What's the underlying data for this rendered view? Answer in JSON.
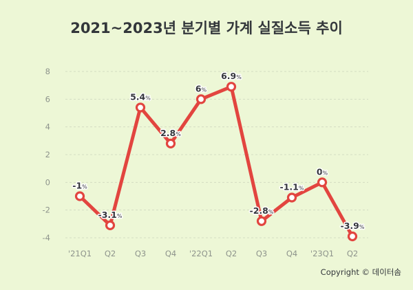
{
  "chart_data": {
    "type": "line",
    "title": "2021~2023년 분기별 가계 실질소득 추이",
    "categories": [
      "'21Q1",
      "Q2",
      "Q3",
      "Q4",
      "'22Q1",
      "Q2",
      "Q3",
      "Q4",
      "'23Q1",
      "Q2"
    ],
    "values": [
      -1,
      -3.1,
      5.4,
      2.8,
      6,
      6.9,
      -2.8,
      -1.1,
      0,
      -3.9
    ],
    "value_suffix": "%",
    "ylim": [
      -4,
      8
    ],
    "yticks": [
      "-4",
      "-2",
      "0",
      "2",
      "4",
      "6",
      "8"
    ],
    "grid": true,
    "colors": {
      "line": "#e2453f",
      "marker_fill": "#ffffff",
      "background": "#edf7d6"
    }
  },
  "copyright": "Copyright © 데이터솜"
}
